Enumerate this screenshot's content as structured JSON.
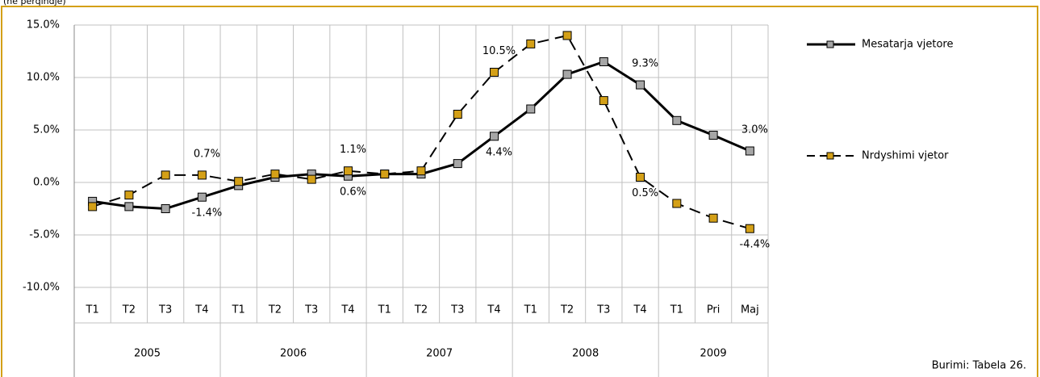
{
  "chart_data": {
    "type": "line",
    "subtitle": "(në përqindje)",
    "source": "Burimi: Tabela 26.",
    "categories": [
      "T1",
      "T2",
      "T3",
      "T4",
      "T1",
      "T2",
      "T3",
      "T4",
      "T1",
      "T2",
      "T3",
      "T4",
      "T1",
      "T2",
      "T3",
      "T4",
      "T1",
      "Pri",
      "Maj"
    ],
    "groups": [
      {
        "label": "2005",
        "span": 4
      },
      {
        "label": "2006",
        "span": 4
      },
      {
        "label": "2007",
        "span": 4
      },
      {
        "label": "2008",
        "span": 4
      },
      {
        "label": "2009",
        "span": 3
      }
    ],
    "ylim": [
      -10,
      15
    ],
    "yticks": [
      {
        "value": -10,
        "label": "-10.0%"
      },
      {
        "value": -5,
        "label": "-5.0%"
      },
      {
        "value": 0,
        "label": "0.0%"
      },
      {
        "value": 5,
        "label": "5.0%"
      },
      {
        "value": 10,
        "label": "10.0%"
      },
      {
        "value": 15,
        "label": "15.0%"
      }
    ],
    "grid": true,
    "legend": "right",
    "series": [
      {
        "name": "Mesatarja vjetore",
        "color": "#000000",
        "marker_color": "#a6a6a6",
        "dashed": false,
        "values": [
          -1.8,
          -2.3,
          -2.5,
          -1.4,
          -0.3,
          0.5,
          0.8,
          0.6,
          0.8,
          0.8,
          1.8,
          4.4,
          7.0,
          10.3,
          11.5,
          9.3,
          5.9,
          4.5,
          3.0
        ],
        "value_labels": [
          null,
          null,
          null,
          "-1.4%",
          null,
          null,
          null,
          "0.6%",
          null,
          null,
          null,
          "4.4%",
          null,
          null,
          null,
          "9.3%",
          null,
          null,
          "3.0%"
        ]
      },
      {
        "name": "Nrdyshimi vjetor",
        "color": "#000000",
        "marker_color": "#d4a017",
        "dashed": true,
        "values": [
          -2.3,
          -1.2,
          0.7,
          0.7,
          0.1,
          0.8,
          0.3,
          1.1,
          0.8,
          1.1,
          6.5,
          10.5,
          13.2,
          14.0,
          7.8,
          0.5,
          -2.0,
          -3.4,
          -4.4
        ],
        "value_labels": [
          null,
          null,
          null,
          "0.7%",
          null,
          null,
          null,
          "1.1%",
          null,
          null,
          null,
          "10.5%",
          null,
          null,
          null,
          "0.5%",
          null,
          null,
          "-4.4%"
        ]
      }
    ]
  }
}
